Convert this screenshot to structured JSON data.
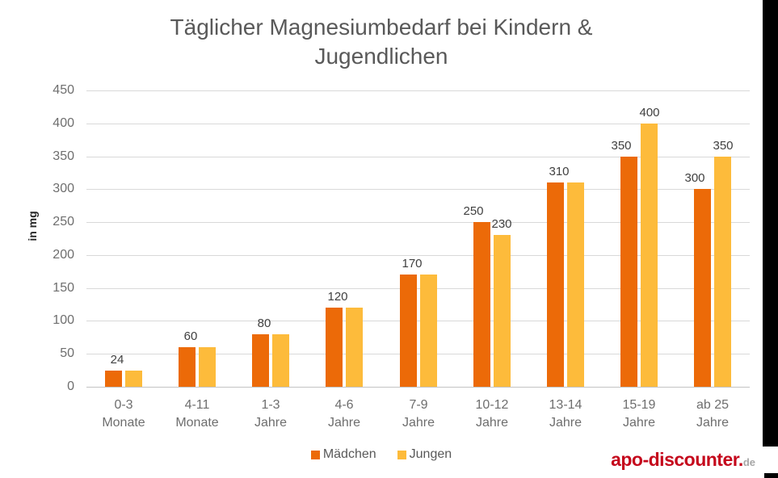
{
  "header": {
    "line1": "Täglicher Magnesiumbedarf bei Kindern &",
    "line2": "Jugendlichen"
  },
  "chart_data": {
    "type": "bar",
    "title": "Täglicher Magnesiumbedarf bei Kindern & Jugendlichen",
    "xlabel": "",
    "ylabel": "in mg",
    "ylim": [
      0,
      450
    ],
    "ytick_step": 50,
    "grid": true,
    "legend_position": "bottom",
    "categories": [
      "0-3 Monate",
      "4-11 Monate",
      "1-3 Jahre",
      "4-6 Jahre",
      "7-9 Jahre",
      "10-12 Jahre",
      "13-14 Jahre",
      "15-19 Jahre",
      "ab 25 Jahre"
    ],
    "series": [
      {
        "name": "Mädchen",
        "color": "#ec6a08",
        "values": [
          24,
          60,
          80,
          120,
          170,
          250,
          310,
          350,
          300
        ]
      },
      {
        "name": "Jungen",
        "color": "#fdbb3b",
        "values": [
          24,
          60,
          80,
          120,
          170,
          230,
          310,
          400,
          350
        ]
      }
    ]
  },
  "legend": {
    "items": [
      {
        "label": "Mädchen",
        "color": "#ec6a08"
      },
      {
        "label": "Jungen",
        "color": "#fdbb3b"
      }
    ]
  },
  "logo": {
    "brand": "apo-discounter.",
    "tld": "de"
  },
  "colors": {
    "title_text": "#595959",
    "axis_text": "#6e6e6e",
    "value_label_text": "#404040",
    "gridline": "#d9d9d9",
    "logo_red": "#c5081c"
  }
}
